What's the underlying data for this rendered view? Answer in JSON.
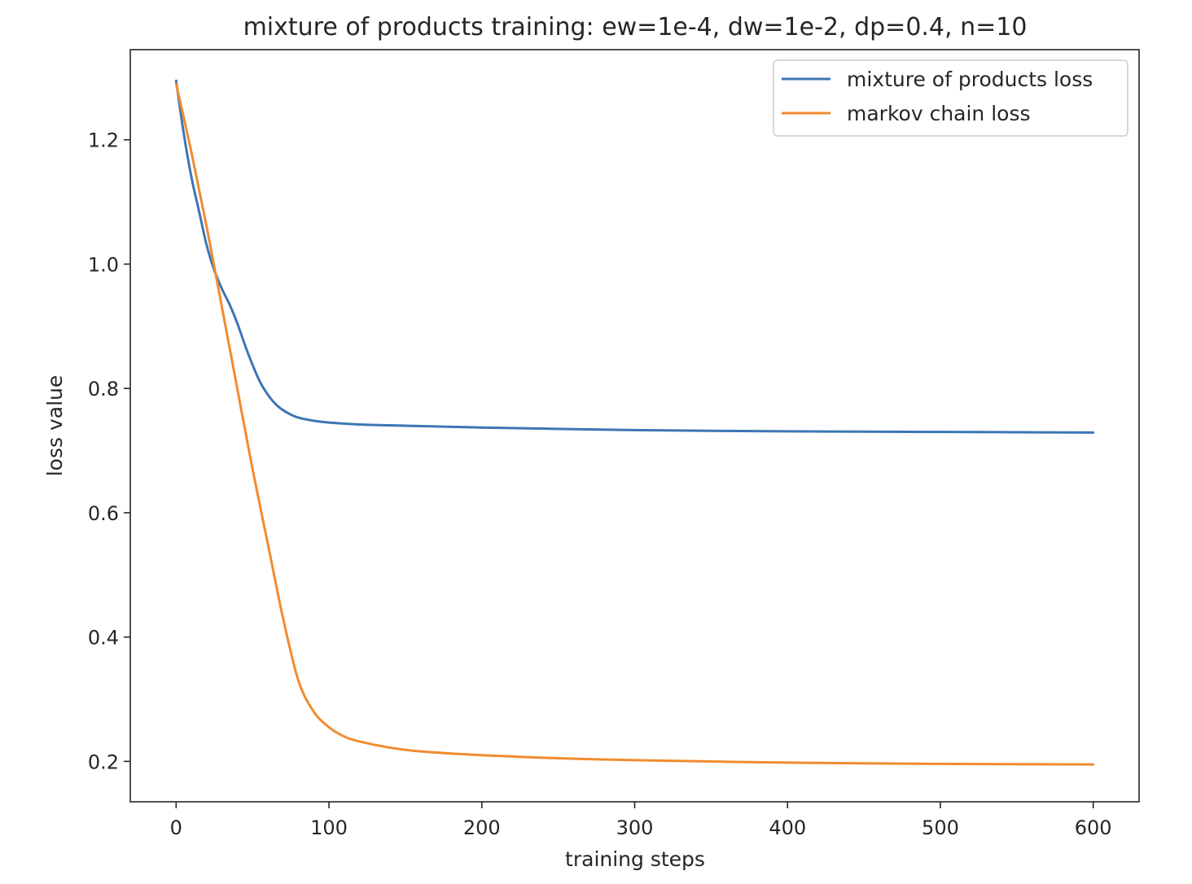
{
  "chart_data": {
    "type": "line",
    "title": "mixture of products training: ew=1e-4, dw=1e-2, dp=0.4, n=10",
    "xlabel": "training steps",
    "ylabel": "loss value",
    "xlim": [
      -30,
      630
    ],
    "ylim": [
      0.135,
      1.345
    ],
    "xticks": [
      0,
      100,
      200,
      300,
      400,
      500,
      600
    ],
    "xtick_labels": [
      "0",
      "100",
      "200",
      "300",
      "400",
      "500",
      "600"
    ],
    "yticks": [
      0.2,
      0.4,
      0.6,
      0.8,
      1.0,
      1.2
    ],
    "ytick_labels": [
      "0.2",
      "0.4",
      "0.6",
      "0.8",
      "1.0",
      "1.2"
    ],
    "grid": false,
    "legend_position": "top-right",
    "series": [
      {
        "name": "mixture of products loss",
        "color": "#3d76b5",
        "x": [
          0,
          5,
          10,
          15,
          20,
          25,
          30,
          35,
          40,
          45,
          50,
          55,
          60,
          65,
          70,
          75,
          80,
          90,
          100,
          120,
          150,
          200,
          300,
          400,
          500,
          600
        ],
        "y": [
          1.295,
          1.21,
          1.14,
          1.085,
          1.03,
          0.99,
          0.96,
          0.935,
          0.905,
          0.87,
          0.838,
          0.81,
          0.79,
          0.775,
          0.765,
          0.758,
          0.753,
          0.748,
          0.745,
          0.742,
          0.74,
          0.737,
          0.733,
          0.731,
          0.73,
          0.729
        ]
      },
      {
        "name": "markov chain loss",
        "color": "#f18b2f",
        "x": [
          0,
          10,
          20,
          30,
          40,
          50,
          60,
          70,
          80,
          90,
          100,
          110,
          120,
          140,
          160,
          200,
          250,
          300,
          400,
          500,
          600
        ],
        "y": [
          1.29,
          1.18,
          1.06,
          0.93,
          0.8,
          0.67,
          0.55,
          0.43,
          0.33,
          0.28,
          0.255,
          0.24,
          0.232,
          0.222,
          0.216,
          0.21,
          0.205,
          0.202,
          0.198,
          0.196,
          0.195
        ]
      }
    ]
  }
}
